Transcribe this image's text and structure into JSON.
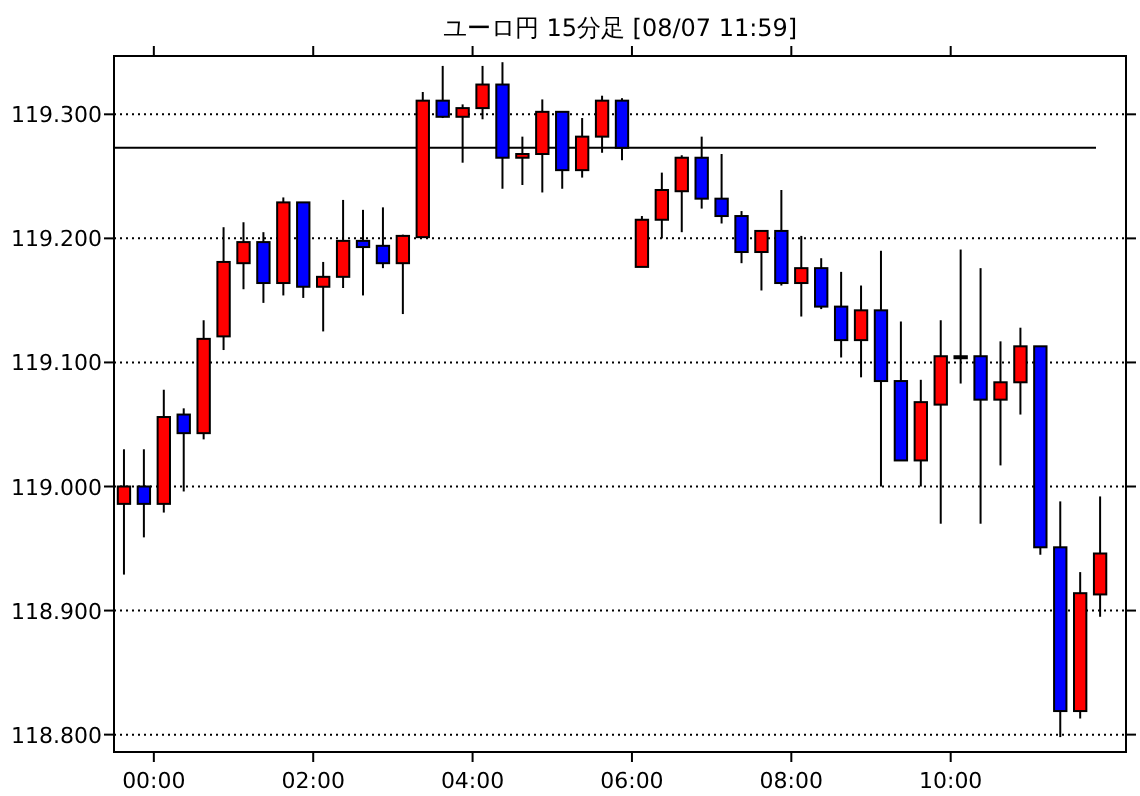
{
  "chart_data": {
    "type": "candlestick",
    "title": "ユーロ円 15分足 [08/07 11:59]",
    "x": [
      -0.375,
      -0.125,
      0.125,
      0.375,
      0.625,
      0.875,
      1.125,
      1.375,
      1.625,
      1.875,
      2.125,
      2.375,
      2.625,
      2.875,
      3.125,
      3.375,
      3.625,
      3.875,
      4.125,
      4.375,
      4.625,
      4.875,
      5.125,
      5.375,
      5.625,
      5.875,
      6.125,
      6.375,
      6.625,
      6.875,
      7.125,
      7.375,
      7.625,
      7.875,
      8.125,
      8.375,
      8.625,
      8.875,
      9.125,
      9.375,
      9.625,
      9.875,
      10.125,
      10.375,
      10.625,
      10.875,
      11.125,
      11.375,
      11.625,
      11.875
    ],
    "ohlc": [
      [
        118.986,
        119.03,
        118.929,
        119.0
      ],
      [
        119.0,
        119.03,
        118.959,
        118.986
      ],
      [
        118.986,
        119.078,
        118.979,
        119.056
      ],
      [
        119.058,
        119.063,
        118.996,
        119.043
      ],
      [
        119.043,
        119.134,
        119.038,
        119.119
      ],
      [
        119.121,
        119.209,
        119.11,
        119.181
      ],
      [
        119.18,
        119.213,
        119.159,
        119.197
      ],
      [
        119.197,
        119.205,
        119.148,
        119.164
      ],
      [
        119.164,
        119.233,
        119.154,
        119.229
      ],
      [
        119.229,
        119.229,
        119.152,
        119.161
      ],
      [
        119.161,
        119.181,
        119.125,
        119.169
      ],
      [
        119.169,
        119.231,
        119.16,
        119.198
      ],
      [
        119.198,
        119.223,
        119.154,
        119.193
      ],
      [
        119.194,
        119.225,
        119.176,
        119.18
      ],
      [
        119.18,
        119.203,
        119.139,
        119.202
      ],
      [
        119.201,
        119.318,
        119.201,
        119.311
      ],
      [
        119.311,
        119.339,
        119.297,
        119.298
      ],
      [
        119.298,
        119.308,
        119.261,
        119.305
      ],
      [
        119.305,
        119.339,
        119.296,
        119.324
      ],
      [
        119.324,
        119.342,
        119.24,
        119.265
      ],
      [
        119.265,
        119.282,
        119.243,
        119.268
      ],
      [
        119.268,
        119.312,
        119.237,
        119.302
      ],
      [
        119.302,
        119.302,
        119.24,
        119.255
      ],
      [
        119.255,
        119.297,
        119.249,
        119.282
      ],
      [
        119.282,
        119.315,
        119.269,
        119.311
      ],
      [
        119.311,
        119.313,
        119.263,
        119.273
      ],
      [
        119.177,
        119.218,
        119.177,
        119.215
      ],
      [
        119.215,
        119.253,
        119.2,
        119.239
      ],
      [
        119.238,
        119.267,
        119.205,
        119.265
      ],
      [
        119.265,
        119.282,
        119.224,
        119.232
      ],
      [
        119.232,
        119.268,
        119.212,
        119.218
      ],
      [
        119.218,
        119.222,
        119.18,
        119.189
      ],
      [
        119.189,
        119.206,
        119.158,
        119.206
      ],
      [
        119.206,
        119.239,
        119.162,
        119.164
      ],
      [
        119.164,
        119.202,
        119.137,
        119.176
      ],
      [
        119.176,
        119.184,
        119.143,
        119.145
      ],
      [
        119.145,
        119.173,
        119.104,
        119.118
      ],
      [
        119.118,
        119.162,
        119.088,
        119.142
      ],
      [
        119.142,
        119.19,
        119.0,
        119.085
      ],
      [
        119.085,
        119.133,
        119.021,
        119.021
      ],
      [
        119.021,
        119.086,
        119.0,
        119.068
      ],
      [
        119.066,
        119.134,
        118.97,
        119.105
      ],
      [
        119.105,
        119.191,
        119.083,
        119.105
      ],
      [
        119.105,
        119.176,
        118.97,
        119.07
      ],
      [
        119.07,
        119.117,
        119.017,
        119.084
      ],
      [
        119.084,
        119.128,
        119.058,
        119.113
      ],
      [
        119.113,
        119.113,
        118.945,
        118.951
      ],
      [
        118.951,
        118.988,
        118.798,
        118.819
      ],
      [
        118.819,
        118.931,
        118.813,
        118.914
      ],
      [
        118.913,
        118.992,
        118.895,
        118.946
      ]
    ],
    "colors": [
      "#ff0000",
      "#0000ff",
      "#ff0000",
      "#0000ff",
      "#ff0000",
      "#ff0000",
      "#ff0000",
      "#0000ff",
      "#ff0000",
      "#0000ff",
      "#ff0000",
      "#ff0000",
      "#0000ff",
      "#0000ff",
      "#ff0000",
      "#ff0000",
      "#0000ff",
      "#ff0000",
      "#ff0000",
      "#0000ff",
      "#ff0000",
      "#ff0000",
      "#0000ff",
      "#ff0000",
      "#ff0000",
      "#0000ff",
      "#ff0000",
      "#ff0000",
      "#ff0000",
      "#0000ff",
      "#0000ff",
      "#0000ff",
      "#ff0000",
      "#0000ff",
      "#ff0000",
      "#0000ff",
      "#0000ff",
      "#ff0000",
      "#0000ff",
      "#0000ff",
      "#ff0000",
      "#ff0000",
      "#ff0000",
      "#0000ff",
      "#ff0000",
      "#ff0000",
      "#0000ff",
      "#0000ff",
      "#ff0000",
      "#ff0000"
    ],
    "xlim": [
      -0.5,
      12.2
    ],
    "xticks": [
      {
        "value": 0,
        "label": "00:00"
      },
      {
        "value": 2,
        "label": "02:00"
      },
      {
        "value": 4,
        "label": "04:00"
      },
      {
        "value": 6,
        "label": "06:00"
      },
      {
        "value": 8,
        "label": "08:00"
      },
      {
        "value": 10,
        "label": "10:00"
      }
    ],
    "ylim": [
      118.786,
      119.347
    ],
    "yticks": [
      {
        "value": 118.8,
        "label": "118.800"
      },
      {
        "value": 118.9,
        "label": "118.900"
      },
      {
        "value": 119.0,
        "label": "119.000"
      },
      {
        "value": 119.1,
        "label": "119.100"
      },
      {
        "value": 119.2,
        "label": "119.200"
      },
      {
        "value": 119.3,
        "label": "119.300"
      }
    ],
    "grid": "y",
    "ref_lines": [
      {
        "axis": "y",
        "value": 119.273,
        "color": "#000000",
        "line_style": "solid"
      }
    ]
  }
}
